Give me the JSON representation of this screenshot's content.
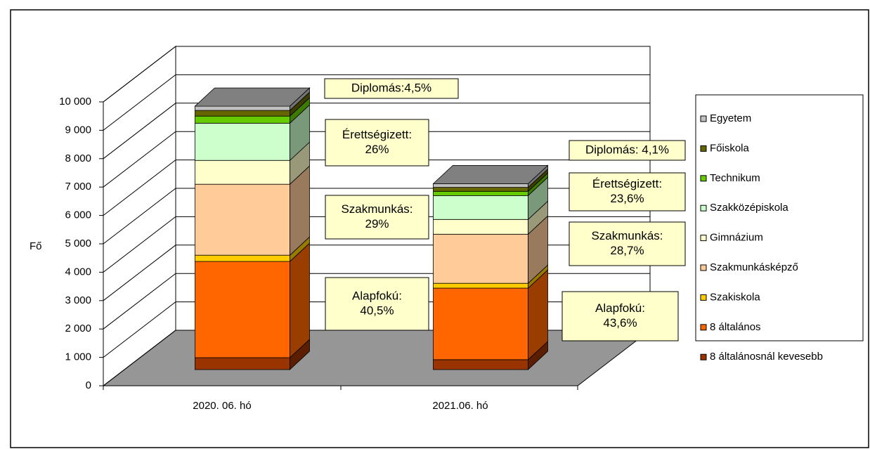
{
  "chart_data": {
    "type": "bar3d_stacked",
    "categories": [
      "2020. 06. hó",
      "2021.06. hó"
    ],
    "y_label": "Fő",
    "ylim": [
      0,
      10000
    ],
    "yticks": [
      0,
      {
        "value": 1000,
        "label": "1 000"
      },
      {
        "value": 2000,
        "label": "2 000"
      },
      {
        "value": 3000,
        "label": "3 000"
      },
      {
        "value": 4000,
        "label": "4 000"
      },
      {
        "value": 5000,
        "label": "5 000"
      },
      {
        "value": 6000,
        "label": "6 000"
      },
      {
        "value": 7000,
        "label": "7 000"
      },
      {
        "value": 8000,
        "label": "8 000"
      },
      {
        "value": 9000,
        "label": "9 000"
      },
      {
        "value": 10000,
        "label": "10 000"
      }
    ],
    "grid": true,
    "legend": "right",
    "series": [
      {
        "name": "8 általánosnál  kevesebb",
        "color": "#993300",
        "values": [
          420,
          350
        ]
      },
      {
        "name": "8 általános",
        "color": "#ff6600",
        "values": [
          3390,
          2520
        ]
      },
      {
        "name": "Szakiskola",
        "color": "#ffcc00",
        "values": [
          220,
          170
        ]
      },
      {
        "name": "Szakmunkásképző",
        "color": "#ffcc99",
        "values": [
          2500,
          1730
        ]
      },
      {
        "name": "Gimnázium",
        "color": "#ffffcc",
        "values": [
          840,
          520
        ]
      },
      {
        "name": "Szakközépiskola",
        "color": "#ccffcc",
        "values": [
          1310,
          840
        ]
      },
      {
        "name": "Technikum",
        "color": "#66cc00",
        "values": [
          250,
          150
        ]
      },
      {
        "name": "Főiskola",
        "color": "#666600",
        "values": [
          200,
          140
        ]
      },
      {
        "name": "Egyetem",
        "color": "#c0c0c0",
        "values": [
          150,
          130
        ]
      }
    ],
    "annotations": [
      {
        "lines": [
          "Diplomás:4,5%"
        ]
      },
      {
        "lines": [
          "Érettségizett:",
          "26%"
        ]
      },
      {
        "lines": [
          "Szakmunkás:",
          "29%"
        ]
      },
      {
        "lines": [
          "Alapfokú:",
          "40,5%"
        ]
      },
      {
        "lines": [
          "Diplomás: 4,1%"
        ]
      },
      {
        "lines": [
          "Érettségizett:",
          "23,6%"
        ]
      },
      {
        "lines": [
          "Szakmunkás:",
          "28,7%"
        ]
      },
      {
        "lines": [
          "Alapfokú:",
          "43,6%"
        ]
      }
    ]
  }
}
